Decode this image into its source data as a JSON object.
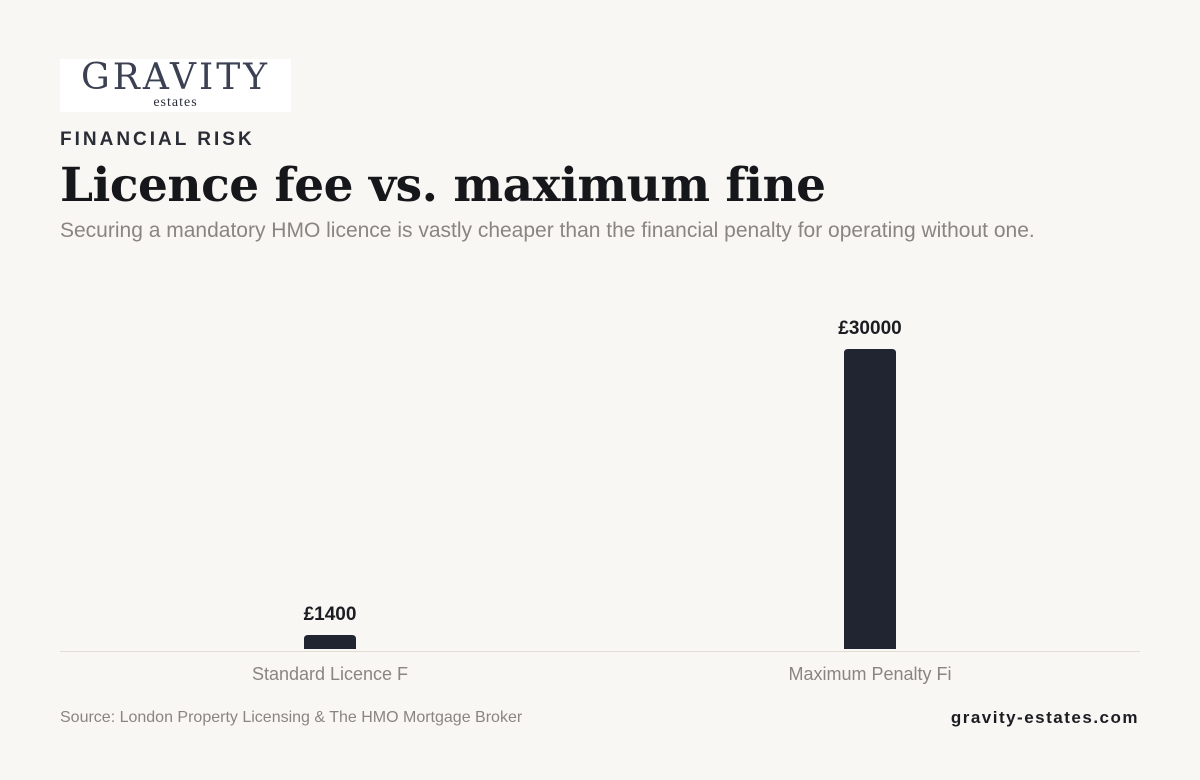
{
  "brand": {
    "logo_word": "GRAVITY",
    "logo_sub": "estates",
    "site": "gravity-estates.com"
  },
  "header": {
    "eyebrow": "FINANCIAL RISK",
    "title": "Licence fee vs. maximum fine",
    "subtitle": "Securing a mandatory HMO licence is vastly cheaper than the financial penalty for operating without one."
  },
  "footer": {
    "source": "Source: London Property Licensing & The HMO Mortgage Broker"
  },
  "colors": {
    "background": "#f9f7f4",
    "bar": "#212532",
    "axis": "#e2ddd7",
    "muted_text": "#8a8580",
    "dark_text": "#1b1d22"
  },
  "chart_data": {
    "type": "bar",
    "categories": [
      "Standard Licence F",
      "Maximum Penalty Fi"
    ],
    "values": [
      1400,
      30000
    ],
    "value_labels": [
      "£1400",
      "£30000"
    ],
    "ylim": [
      0,
      30000
    ],
    "grid": false,
    "legend": "none"
  }
}
